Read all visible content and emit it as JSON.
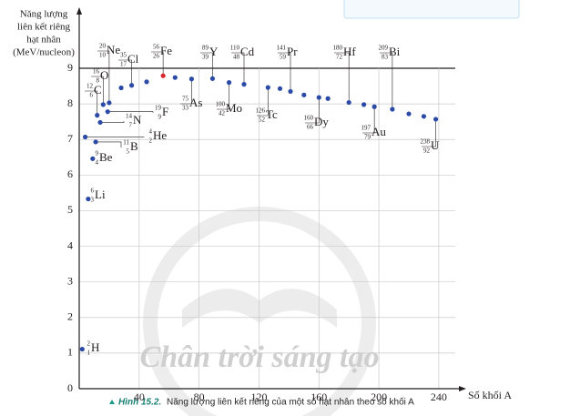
{
  "chart_data": {
    "type": "scatter",
    "ylabel": [
      "Năng lượng",
      "liên kết riêng",
      "hạt nhân",
      "(MeV/nucleon)"
    ],
    "xlabel": "Số khối A",
    "caption": {
      "label": "Hình 15.2.",
      "text": "Năng lượng liên kết riêng của một số hạt nhân theo số khối A"
    },
    "watermark": "Chân trời sáng tạo",
    "xlim": [
      0,
      251
    ],
    "ylim": [
      0,
      9
    ],
    "xticks": [
      40,
      80,
      120,
      160,
      200,
      240
    ],
    "yticks": [
      0,
      1,
      2,
      3,
      4,
      5,
      6,
      7,
      8,
      9
    ],
    "grid": true,
    "series": [
      {
        "x": [
          2,
          4,
          6,
          9,
          11,
          12,
          14,
          16,
          19,
          20,
          28,
          35,
          45,
          56,
          64,
          75,
          89,
          100,
          110,
          126,
          134,
          141,
          150,
          160,
          166,
          180,
          190,
          197,
          209,
          220,
          230,
          238
        ],
        "values": [
          1.11,
          7.07,
          5.33,
          6.46,
          6.93,
          7.68,
          7.48,
          7.98,
          7.78,
          8.03,
          8.45,
          8.52,
          8.62,
          8.79,
          8.74,
          8.7,
          8.71,
          8.6,
          8.55,
          8.46,
          8.43,
          8.35,
          8.25,
          8.18,
          8.15,
          8.04,
          7.98,
          7.92,
          7.85,
          7.72,
          7.65,
          7.57
        ],
        "labels": [
          "H",
          "He",
          "Li",
          "Be",
          "B",
          "C",
          "N",
          "O",
          "F",
          "Ne",
          null,
          "Cl",
          null,
          "Fe",
          null,
          "As",
          "Y",
          "Mo",
          "Cd",
          "Tc",
          null,
          "Pr",
          null,
          "Dy",
          null,
          "Hf",
          null,
          "Au",
          "Bi",
          null,
          null,
          "U"
        ],
        "atomic_numbers": [
          1,
          2,
          3,
          4,
          5,
          6,
          7,
          8,
          9,
          10,
          null,
          17,
          null,
          26,
          null,
          33,
          39,
          42,
          48,
          52,
          null,
          59,
          null,
          66,
          null,
          72,
          null,
          79,
          83,
          null,
          null,
          92
        ],
        "colors": [
          "#2b4aa6",
          "#2b4aa6",
          "#2b4aa6",
          "#2b4aa6",
          "#2b4aa6",
          "#2b4aa6",
          "#2b4aa6",
          "#2b4aa6",
          "#2b4aa6",
          "#2b4aa6",
          "#2b4aa6",
          "#2b4aa6",
          "#2b4aa6",
          "#d9262c",
          "#2b4aa6",
          "#2b4aa6",
          "#2b4aa6",
          "#2b4aa6",
          "#2b4aa6",
          "#2b4aa6",
          "#2b4aa6",
          "#2b4aa6",
          "#2b4aa6",
          "#2b4aa6",
          "#2b4aa6",
          "#2b4aa6",
          "#2b4aa6",
          "#2b4aa6",
          "#2b4aa6",
          "#2b4aa6",
          "#2b4aa6",
          "#2b4aa6"
        ]
      }
    ]
  }
}
